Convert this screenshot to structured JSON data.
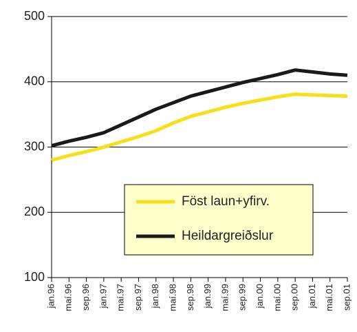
{
  "chart_data": {
    "type": "line",
    "categories": [
      "jan.96",
      "maí.96",
      "sep.96",
      "jan.97",
      "maí.97",
      "sep.97",
      "jan.98",
      "maí.98",
      "sep.98",
      "jan.99",
      "maí.99",
      "sep.99",
      "jan.00",
      "maí.00",
      "sep.00",
      "jan.01",
      "maí.01",
      "sep.01"
    ],
    "series": [
      {
        "name": "Föst laun+yfirv.",
        "color": "#f7e01a",
        "values": [
          280,
          287,
          293,
          300,
          308,
          316,
          325,
          337,
          347,
          354,
          361,
          367,
          372,
          377,
          381,
          380,
          379,
          378
        ]
      },
      {
        "name": "Heildargreiðslur",
        "color": "#1a1a1a",
        "values": [
          302,
          309,
          315,
          322,
          334,
          346,
          358,
          368,
          378,
          385,
          392,
          399,
          405,
          411,
          418,
          415,
          412,
          410
        ]
      }
    ],
    "ylim": [
      100,
      500
    ],
    "yticks": [
      100,
      200,
      300,
      400,
      500
    ],
    "grid": true
  }
}
